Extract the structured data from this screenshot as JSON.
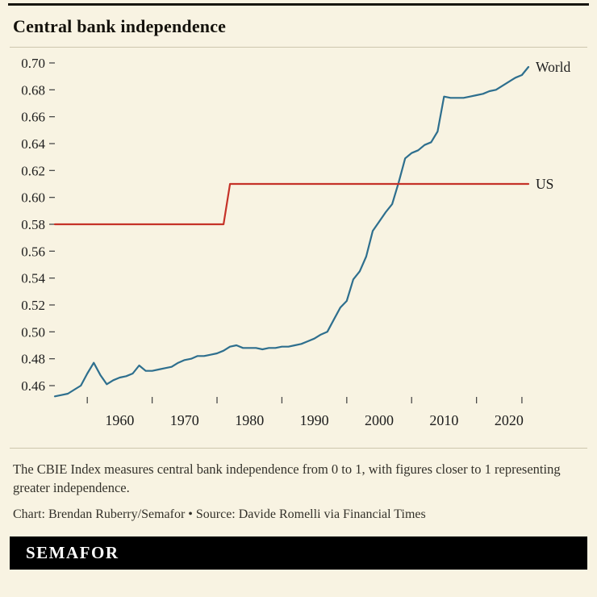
{
  "page": {
    "title": "Central bank independence"
  },
  "footer": {
    "note": "The CBIE Index measures central bank independence from 0 to 1, with figures closer to 1 representing greater independence.",
    "credit": "Chart: Brendan Ruberry/Semafor • Source: Davide Romelli via Financial Times",
    "logo": "SEMAFOR"
  },
  "colors": {
    "background": "#f8f3e2",
    "world_line": "#2e6f8e",
    "us_line": "#c53228",
    "axis_text": "#1d1d1d",
    "tick": "#4a4a4a",
    "banner_bg": "#000000",
    "banner_text": "#ffffff"
  },
  "chart_data": {
    "type": "line",
    "title": "Central bank independence",
    "xlabel": "",
    "ylabel": "",
    "grid": false,
    "legend_position": "end-of-line labels",
    "xlim": [
      1950,
      2024
    ],
    "ylim": [
      0.46,
      0.7
    ],
    "y_ticks": [
      0.46,
      0.48,
      0.5,
      0.52,
      0.54,
      0.56,
      0.58,
      0.6,
      0.62,
      0.64,
      0.66,
      0.68,
      0.7
    ],
    "x_ticks": [
      1960,
      1970,
      1980,
      1990,
      2000,
      2010,
      2020
    ],
    "x_minor_ticks": [
      1955,
      1965,
      1975,
      1985,
      1995,
      2005,
      2015,
      2022
    ],
    "series": [
      {
        "name": "World",
        "color": "#2e6f8e",
        "x_start": 1950,
        "x_step": 1,
        "values": [
          0.452,
          0.453,
          0.454,
          0.457,
          0.46,
          0.469,
          0.477,
          0.468,
          0.461,
          0.464,
          0.466,
          0.467,
          0.469,
          0.475,
          0.471,
          0.471,
          0.472,
          0.473,
          0.474,
          0.477,
          0.479,
          0.48,
          0.482,
          0.482,
          0.483,
          0.484,
          0.486,
          0.489,
          0.49,
          0.488,
          0.488,
          0.488,
          0.487,
          0.488,
          0.488,
          0.489,
          0.489,
          0.49,
          0.491,
          0.493,
          0.495,
          0.498,
          0.5,
          0.509,
          0.518,
          0.523,
          0.539,
          0.545,
          0.556,
          0.575,
          0.582,
          0.589,
          0.595,
          0.611,
          0.629,
          0.633,
          0.635,
          0.639,
          0.641,
          0.649,
          0.675,
          0.674,
          0.674,
          0.674,
          0.675,
          0.676,
          0.677,
          0.679,
          0.68,
          0.683,
          0.686,
          0.689,
          0.691,
          0.697
        ]
      },
      {
        "name": "US",
        "color": "#c53228",
        "x": [
          1950,
          1976,
          1977,
          2023
        ],
        "values": [
          0.58,
          0.58,
          0.61,
          0.61
        ]
      }
    ]
  }
}
